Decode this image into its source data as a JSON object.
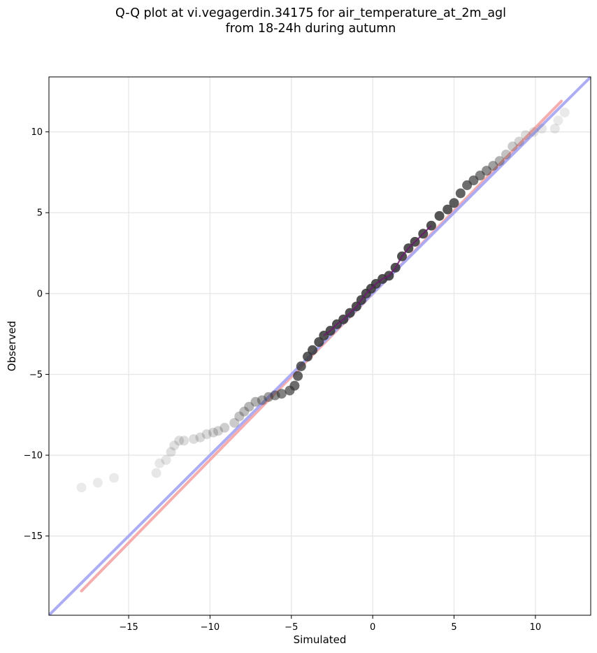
{
  "chart_data": {
    "type": "scatter",
    "title": "Q-Q plot at vi.vegagerdin.34175 for air_temperature_at_2m_agl",
    "subtitle": "from 18-24h during autumn",
    "xlabel": "Simulated",
    "ylabel": "Observed",
    "xlim": [
      -19.9,
      13.4
    ],
    "ylim": [
      -19.9,
      13.4
    ],
    "xticks": [
      -15,
      -10,
      -5,
      0,
      5,
      10
    ],
    "yticks": [
      -15,
      -10,
      -5,
      0,
      5,
      10
    ],
    "xtick_labels": [
      "−15",
      "−10",
      "−5",
      "0",
      "5",
      "10"
    ],
    "ytick_labels": [
      "−15",
      "−10",
      "−5",
      "0",
      "5",
      "10"
    ],
    "grid": true,
    "legend": "none",
    "colors": {
      "points": "#333333",
      "identity_line": "#a9a9f5",
      "fit_line": "#f5a9a9",
      "median_segment": "#6a1b6e"
    },
    "lines": [
      {
        "kind": "identity",
        "x": [
          -19.9,
          13.4
        ],
        "y": [
          -19.9,
          13.4
        ]
      },
      {
        "kind": "fit",
        "x": [
          -17.9,
          11.6
        ],
        "y": [
          -18.4,
          11.9
        ]
      }
    ],
    "quantiles": {
      "x": [
        -17.9,
        -16.9,
        -15.9,
        -13.3,
        -13.1,
        -12.7,
        -12.4,
        -12.2,
        -11.9,
        -11.6,
        -11.0,
        -10.6,
        -10.2,
        -9.8,
        -9.5,
        -9.1,
        -8.5,
        -8.2,
        -7.9,
        -7.6,
        -7.2,
        -6.8,
        -6.4,
        -6.0,
        -5.6,
        -5.1,
        -4.8,
        -4.6,
        -4.4,
        -4.0,
        -3.7,
        -3.3,
        -3.0,
        -2.6,
        -2.2,
        -1.8,
        -1.4,
        -1.0,
        -0.7,
        -0.4,
        -0.1,
        0.2,
        0.6,
        1.0,
        1.4,
        1.8,
        2.2,
        2.6,
        3.1,
        3.6,
        4.1,
        4.6,
        5.0,
        5.4,
        5.8,
        6.2,
        6.6,
        7.0,
        7.4,
        7.8,
        8.2,
        8.6,
        9.0,
        9.4,
        9.9,
        10.4,
        11.2,
        11.4,
        11.8
      ],
      "y": [
        -12.0,
        -11.7,
        -11.4,
        -11.1,
        -10.5,
        -10.3,
        -9.8,
        -9.4,
        -9.1,
        -9.1,
        -9.0,
        -8.9,
        -8.7,
        -8.6,
        -8.5,
        -8.3,
        -8.0,
        -7.6,
        -7.3,
        -7.0,
        -6.7,
        -6.6,
        -6.4,
        -6.3,
        -6.2,
        -6.0,
        -5.7,
        -5.1,
        -4.5,
        -3.9,
        -3.5,
        -3.0,
        -2.6,
        -2.3,
        -1.9,
        -1.6,
        -1.2,
        -0.8,
        -0.4,
        0.0,
        0.3,
        0.6,
        0.9,
        1.1,
        1.6,
        2.3,
        2.8,
        3.2,
        3.7,
        4.2,
        4.8,
        5.2,
        5.6,
        6.2,
        6.7,
        7.0,
        7.3,
        7.6,
        7.9,
        8.2,
        8.6,
        9.1,
        9.4,
        9.8,
        10.0,
        10.2,
        10.2,
        10.7,
        11.2
      ],
      "opacity": [
        0.12,
        0.12,
        0.12,
        0.14,
        0.14,
        0.15,
        0.18,
        0.18,
        0.2,
        0.2,
        0.2,
        0.22,
        0.22,
        0.24,
        0.26,
        0.28,
        0.3,
        0.35,
        0.38,
        0.42,
        0.45,
        0.5,
        0.55,
        0.65,
        0.72,
        0.8,
        0.85,
        0.9,
        0.92,
        0.95,
        0.97,
        0.98,
        0.99,
        1,
        1,
        1,
        1,
        1,
        1,
        1,
        1,
        1,
        1,
        1,
        1,
        1,
        1,
        1,
        1,
        1,
        0.98,
        0.96,
        0.93,
        0.9,
        0.85,
        0.8,
        0.72,
        0.65,
        0.55,
        0.45,
        0.35,
        0.3,
        0.25,
        0.2,
        0.16,
        0.14,
        0.14,
        0.12,
        0.12
      ]
    }
  }
}
